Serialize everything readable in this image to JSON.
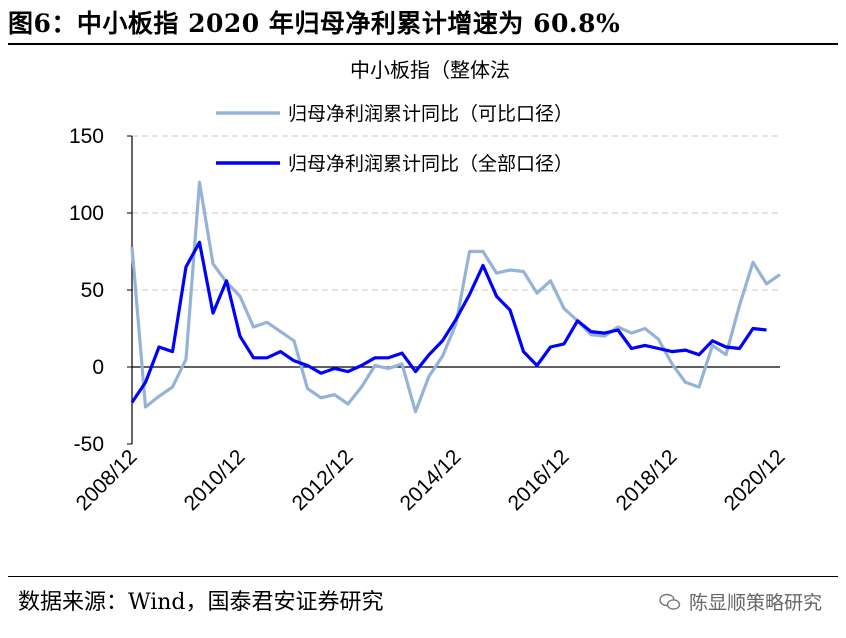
{
  "figure_title": "图6：中小板指 2020 年归母净利累计增速为 60.8%",
  "source_text": "数据来源：Wind，国泰君安证券研究",
  "watermark_text": "陈显顺策略研究",
  "chart_data": {
    "type": "line",
    "title": "中小板指（整体法",
    "xlabel": "",
    "ylabel": "",
    "ylim": [
      -50,
      150
    ],
    "yticks": [
      -50,
      0,
      50,
      100,
      150
    ],
    "grid": "horizontal-dashed",
    "legend_position": "top",
    "x": [
      "2008/12",
      "2009/03",
      "2009/06",
      "2009/09",
      "2009/12",
      "2010/03",
      "2010/06",
      "2010/09",
      "2010/12",
      "2011/03",
      "2011/06",
      "2011/09",
      "2011/12",
      "2012/03",
      "2012/06",
      "2012/09",
      "2012/12",
      "2013/03",
      "2013/06",
      "2013/09",
      "2013/12",
      "2014/03",
      "2014/06",
      "2014/09",
      "2014/12",
      "2015/03",
      "2015/06",
      "2015/09",
      "2015/12",
      "2016/03",
      "2016/06",
      "2016/09",
      "2016/12",
      "2017/03",
      "2017/06",
      "2017/09",
      "2017/12",
      "2018/03",
      "2018/06",
      "2018/09",
      "2018/12",
      "2019/03",
      "2019/06",
      "2019/09",
      "2019/12",
      "2020/03",
      "2020/06",
      "2020/09",
      "2020/12"
    ],
    "xtick_labels": [
      "2008/12",
      "2010/12",
      "2012/12",
      "2014/12",
      "2016/12",
      "2018/12",
      "2020/12"
    ],
    "series": [
      {
        "name": "归母净利润累计同比（可比口径）",
        "color": "#95b3d7",
        "values": [
          78,
          -26,
          -19,
          -13,
          5,
          120,
          67,
          55,
          46,
          26,
          29,
          23,
          17,
          -14,
          -20,
          -18,
          -24,
          -13,
          1,
          -1,
          2,
          -29,
          -6,
          7,
          28,
          75,
          75,
          61,
          63,
          62,
          48,
          56,
          38,
          30,
          21,
          20,
          26,
          22,
          25,
          18,
          2,
          -10,
          -13,
          14,
          8,
          40,
          68,
          54,
          60
        ]
      },
      {
        "name": "归母净利润累计同比（全部口径）",
        "color": "#0000ff",
        "values": [
          -23,
          -10,
          13,
          10,
          65,
          81,
          35,
          56,
          20,
          6,
          6,
          10,
          4,
          1,
          -4,
          -1,
          -3,
          1,
          6,
          6,
          9,
          -3,
          8,
          17,
          31,
          47,
          66,
          46,
          37,
          10,
          1,
          13,
          15,
          30,
          23,
          22,
          24,
          12,
          14,
          12,
          10,
          11,
          8,
          17,
          13,
          12,
          25,
          24,
          null
        ]
      }
    ]
  }
}
